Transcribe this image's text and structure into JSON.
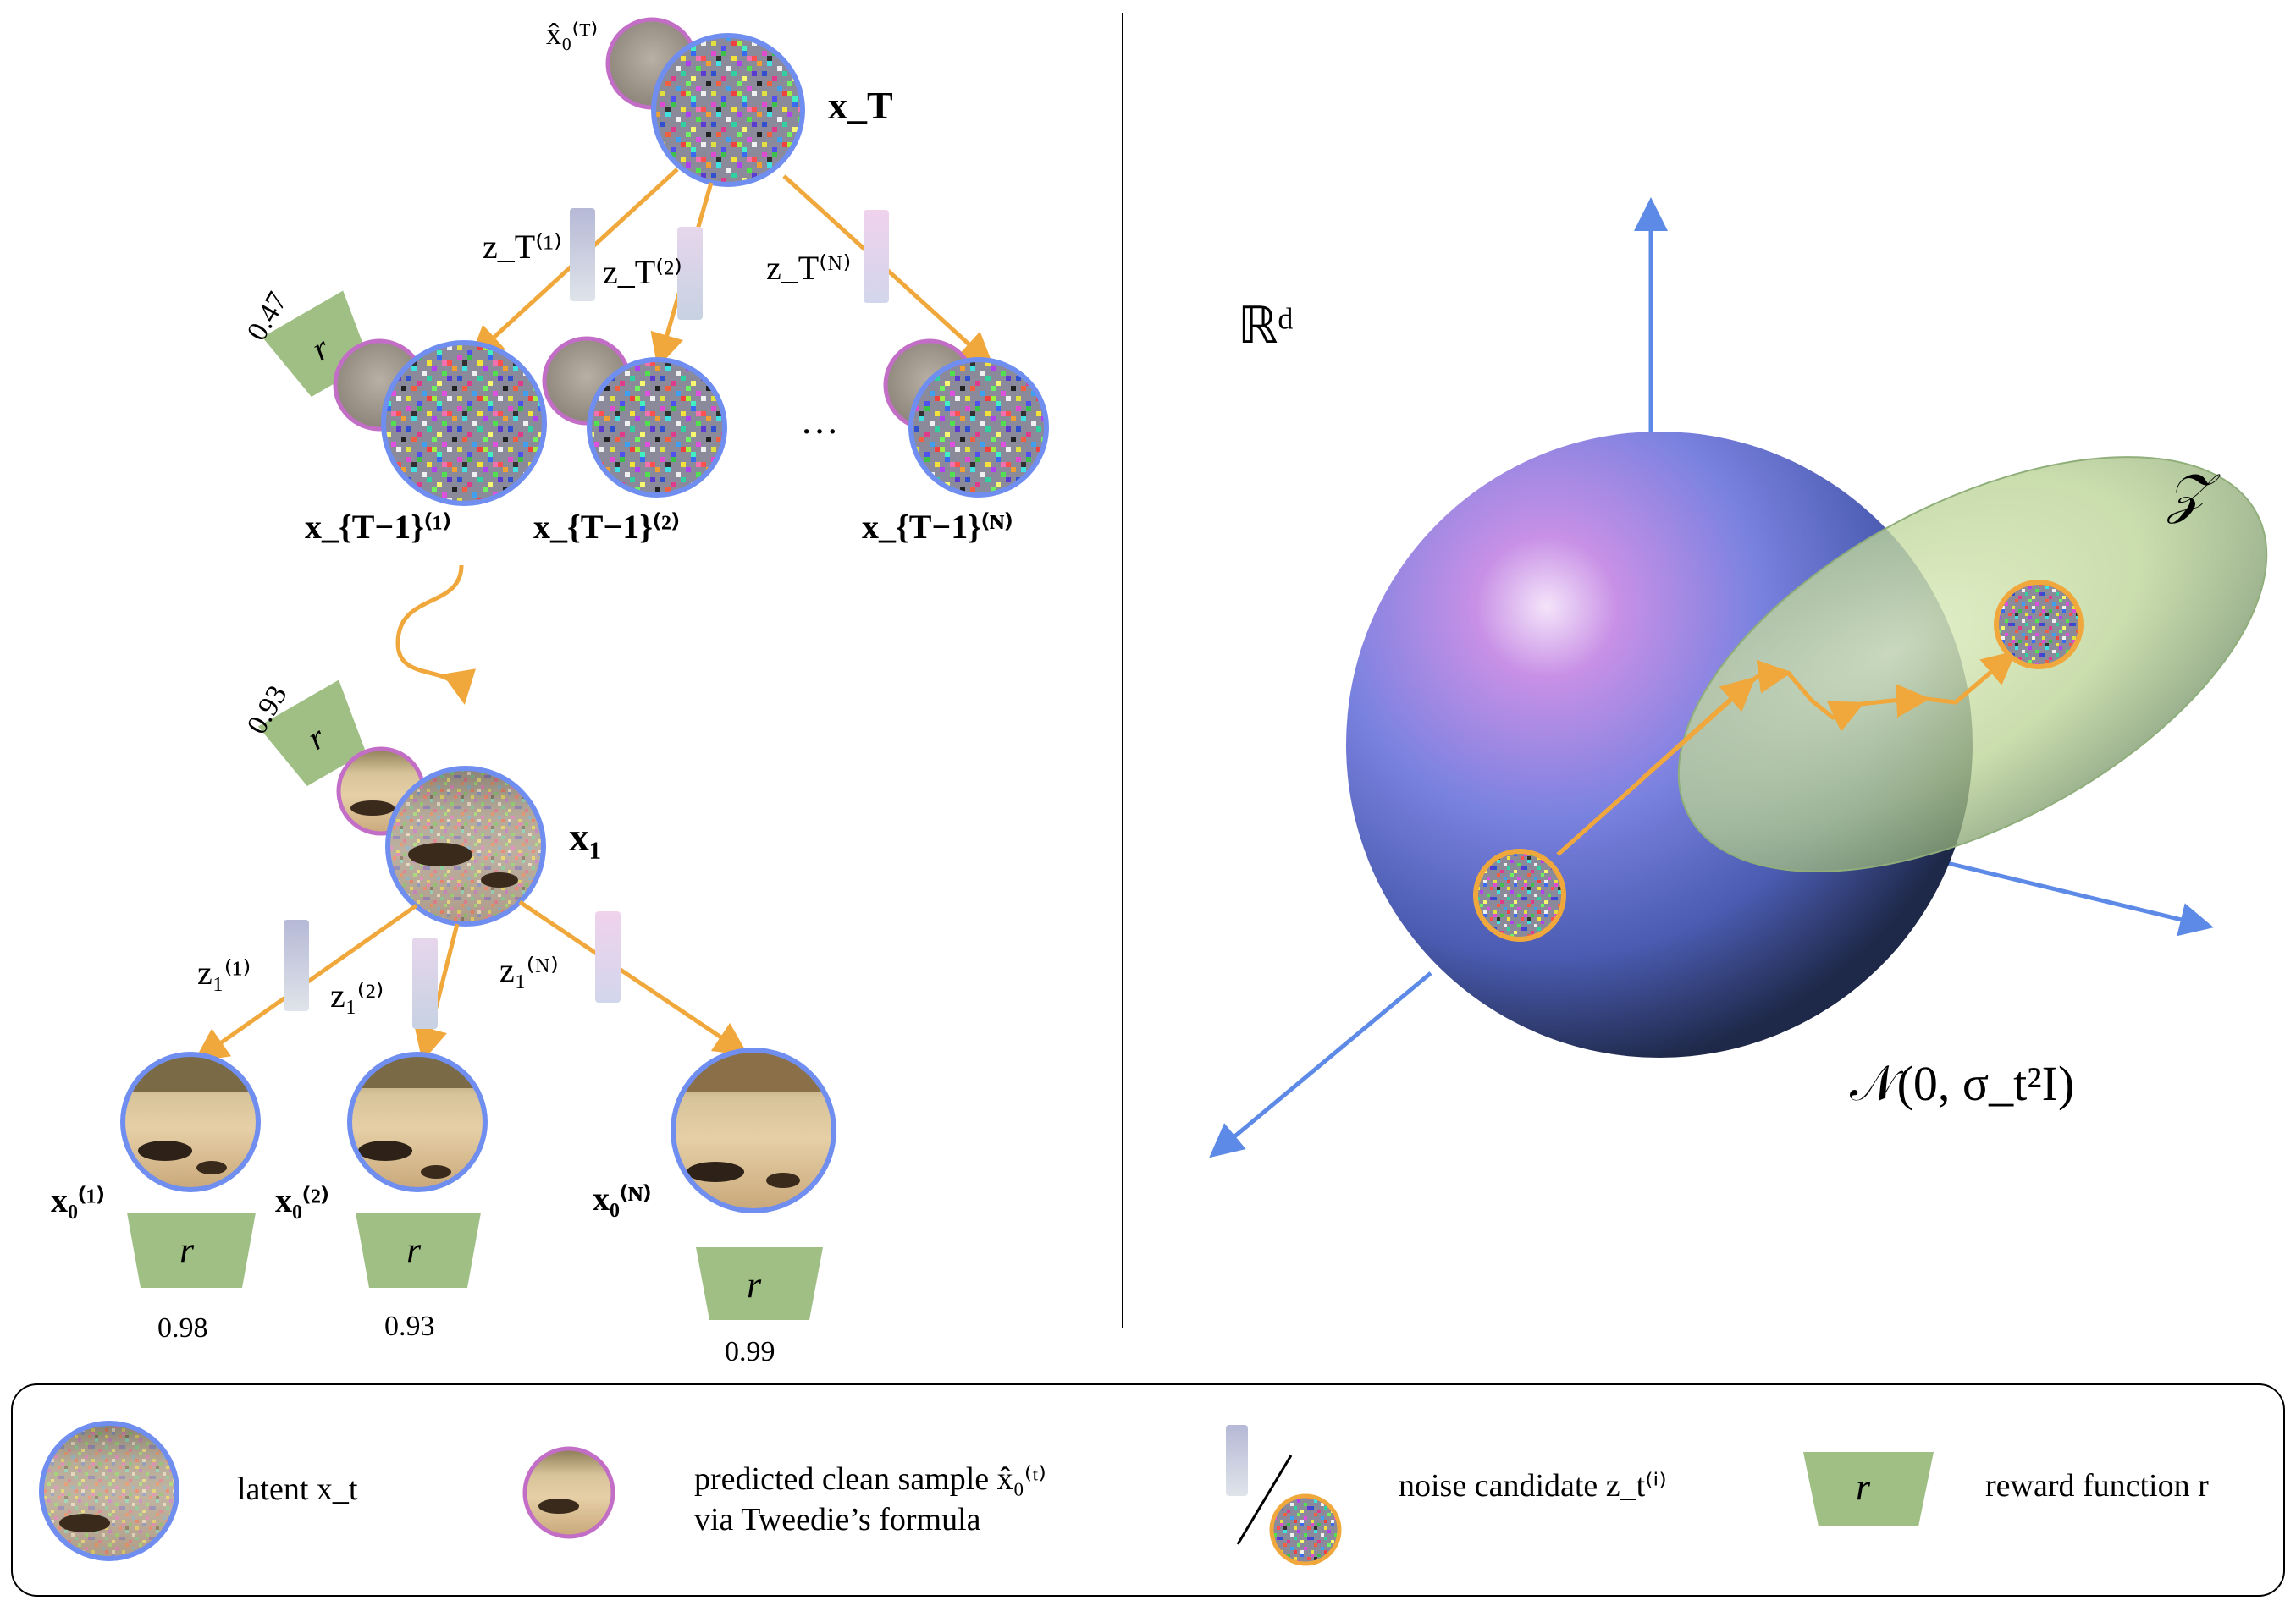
{
  "colors": {
    "latent_ring": "#6f8ef0",
    "tweedie_ring": "#c36ec6",
    "candidate_ring": "#f0a83c",
    "arrow_orange": "#f0a83c",
    "arrow_blue": "#5d8ae6",
    "reward_green": "#9fbf85",
    "sphere_light": "#c68ee8",
    "sphere_dark": "#23304f",
    "ellipse_green": "#b6d08f"
  },
  "icons": [
    "noise-latent-icon",
    "tweedie-sample-icon",
    "noise-candidate-bar-icon",
    "reward-trapezoid-icon",
    "cheetah-image-icon"
  ],
  "tree": {
    "root_tweedie": "x̂₀⁽ᵀ⁾",
    "root_latent": "x_T",
    "noises_T": [
      "z_T⁽¹⁾",
      "z_T⁽²⁾",
      "z_T⁽ᴺ⁾"
    ],
    "children_T": [
      "x_{T−1}⁽¹⁾",
      "x_{T−1}⁽²⁾",
      "x_{T−1}⁽ᴺ⁾"
    ],
    "reward_top_value": "0.47",
    "ellipsis": "···",
    "reward_mid_value": "0.93",
    "mid_latent": "x₁",
    "noises_1": [
      "z₁⁽¹⁾",
      "z₁⁽²⁾",
      "z₁⁽ᴺ⁾"
    ],
    "leaves": [
      "x₀⁽¹⁾",
      "x₀⁽²⁾",
      "x₀⁽ᴺ⁾"
    ],
    "leaf_rewards": [
      "0.98",
      "0.93",
      "0.99"
    ],
    "reward_symbol": "r"
  },
  "space": {
    "space_label": "ℝᵈ",
    "set_label": "𝒵",
    "gaussian_label": "𝒩(0, σ_t²I)"
  },
  "legend": {
    "latent": "latent x_t",
    "predicted_line1": "predicted clean sample x̂₀⁽ᵗ⁾",
    "predicted_line2": "via Tweedie’s formula",
    "noise": "noise candidate z_t⁽ⁱ⁾",
    "reward": "reward function r",
    "reward_symbol": "r"
  }
}
